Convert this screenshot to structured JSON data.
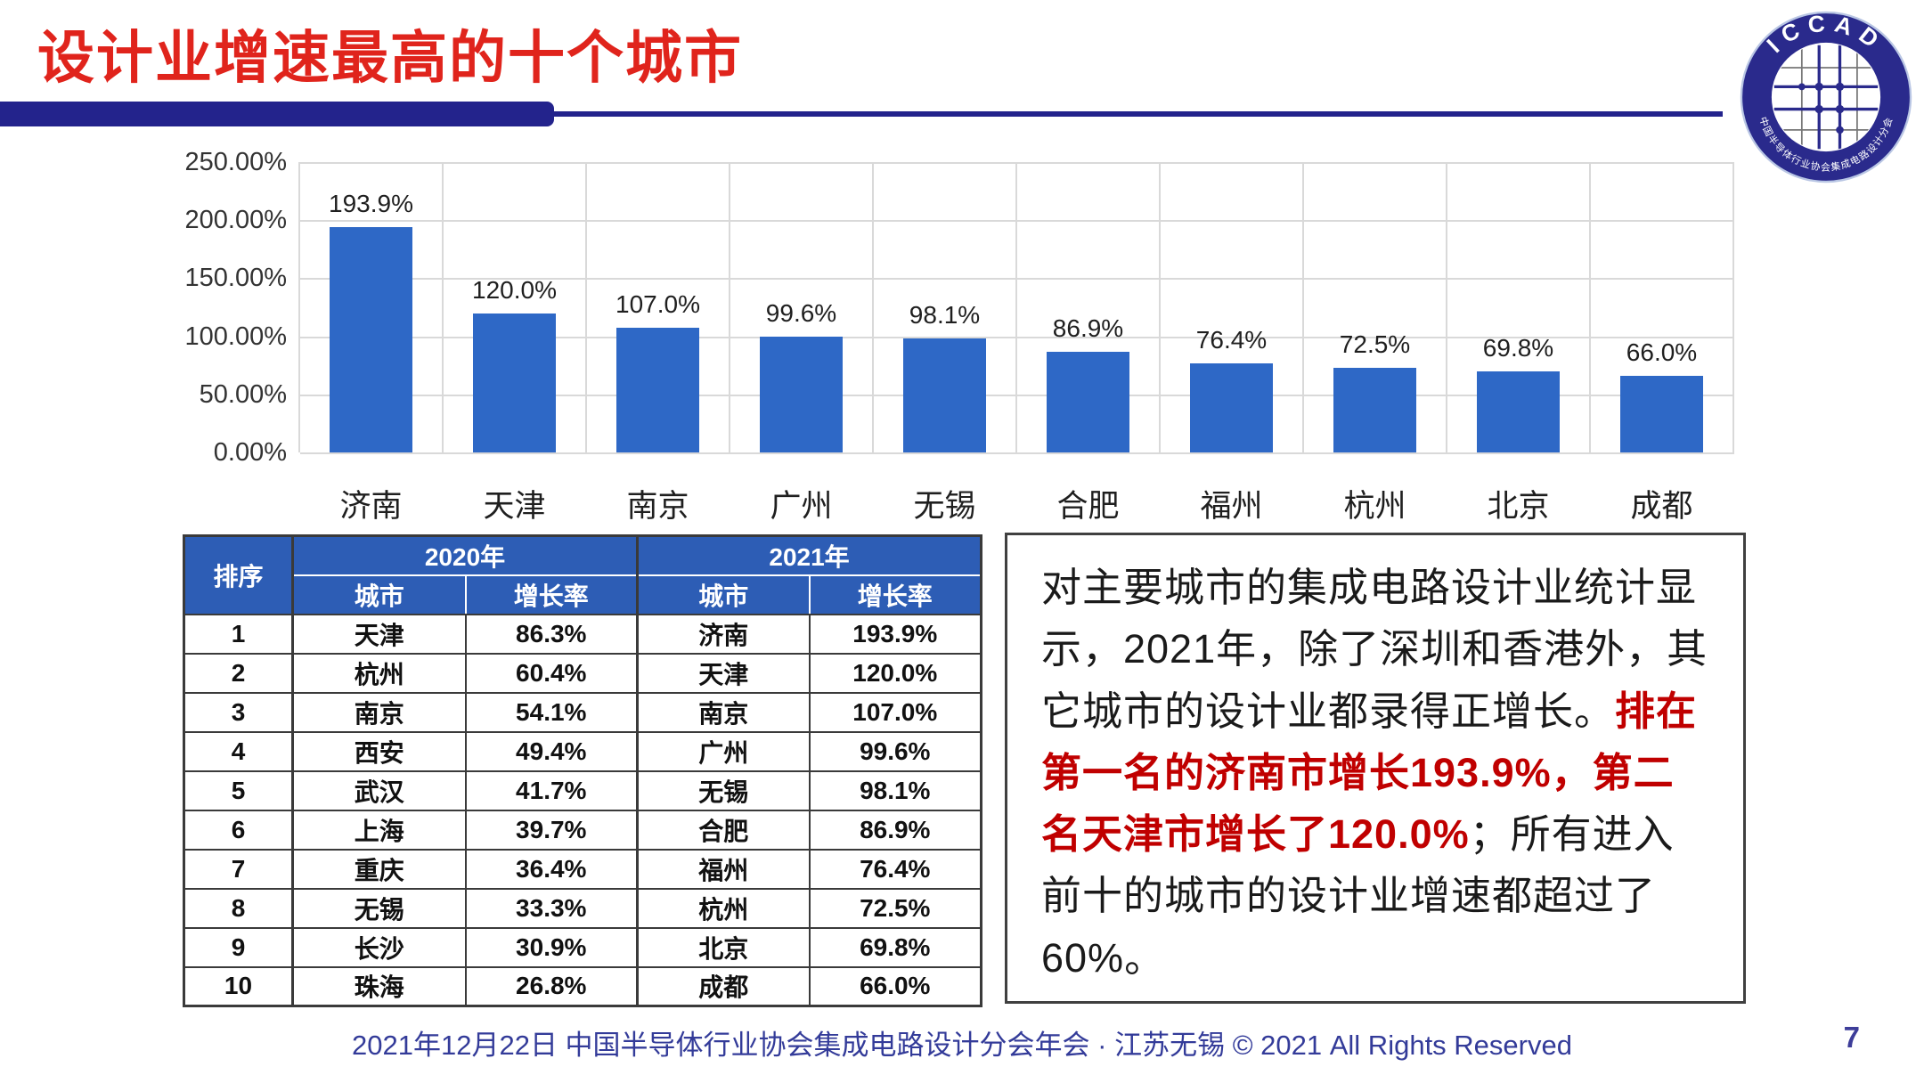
{
  "header": {
    "title": "设计业增速最高的十个城市",
    "logo": {
      "top_text": "ICCAD",
      "bottom_text": "中国半导体行业协会集成电路设计分会"
    }
  },
  "chart_data": {
    "type": "bar",
    "categories": [
      "济南",
      "天津",
      "南京",
      "广州",
      "无锡",
      "合肥",
      "福州",
      "杭州",
      "北京",
      "成都"
    ],
    "values": [
      193.9,
      120.0,
      107.0,
      99.6,
      98.1,
      86.9,
      76.4,
      72.5,
      69.8,
      66.0
    ],
    "data_labels": [
      "193.9%",
      "120.0%",
      "107.0%",
      "99.6%",
      "98.1%",
      "86.9%",
      "76.4%",
      "72.5%",
      "69.8%",
      "66.0%"
    ],
    "title": "",
    "xlabel": "",
    "ylabel": "",
    "ylim": [
      0,
      250
    ],
    "yticks": [
      "250.00%",
      "200.00%",
      "150.00%",
      "100.00%",
      "50.00%",
      "0.00%"
    ],
    "grid": true,
    "legend": "none",
    "bar_color": "#2E68C6"
  },
  "table": {
    "headers": {
      "rank": "排序",
      "y2020": "2020年",
      "y2021": "2021年",
      "city": "城市",
      "rate": "增长率"
    },
    "rows": [
      [
        "1",
        "天津",
        "86.3%",
        "济南",
        "193.9%"
      ],
      [
        "2",
        "杭州",
        "60.4%",
        "天津",
        "120.0%"
      ],
      [
        "3",
        "南京",
        "54.1%",
        "南京",
        "107.0%"
      ],
      [
        "4",
        "西安",
        "49.4%",
        "广州",
        "99.6%"
      ],
      [
        "5",
        "武汉",
        "41.7%",
        "无锡",
        "98.1%"
      ],
      [
        "6",
        "上海",
        "39.7%",
        "合肥",
        "86.9%"
      ],
      [
        "7",
        "重庆",
        "36.4%",
        "福州",
        "76.4%"
      ],
      [
        "8",
        "无锡",
        "33.3%",
        "杭州",
        "72.5%"
      ],
      [
        "9",
        "长沙",
        "30.9%",
        "北京",
        "69.8%"
      ],
      [
        "10",
        "珠海",
        "26.8%",
        "成都",
        "66.0%"
      ]
    ]
  },
  "textbox": {
    "part1": "对主要城市的集成电路设计业统计显示，2021年，除了深圳和香港外，其它城市的设计业都录得正增长。",
    "part2_red": "排在第一名的济南市增长193.9%，第二名天津市增长了120.0%",
    "part3": "；所有进入前十的城市的设计业增速都超过了60%。"
  },
  "footer": {
    "text": "2021年12月22日 中国半导体行业协会集成电路设计分会年会 · 江苏无锡 © 2021 All Rights Reserved",
    "page": "7"
  },
  "colors": {
    "title_red": "#E0241C",
    "navy": "#23238C",
    "bar_blue": "#2E68C6",
    "table_header_blue": "#2D5DB5",
    "emphasis_red": "#C00000",
    "footer_blue": "#333B99"
  }
}
